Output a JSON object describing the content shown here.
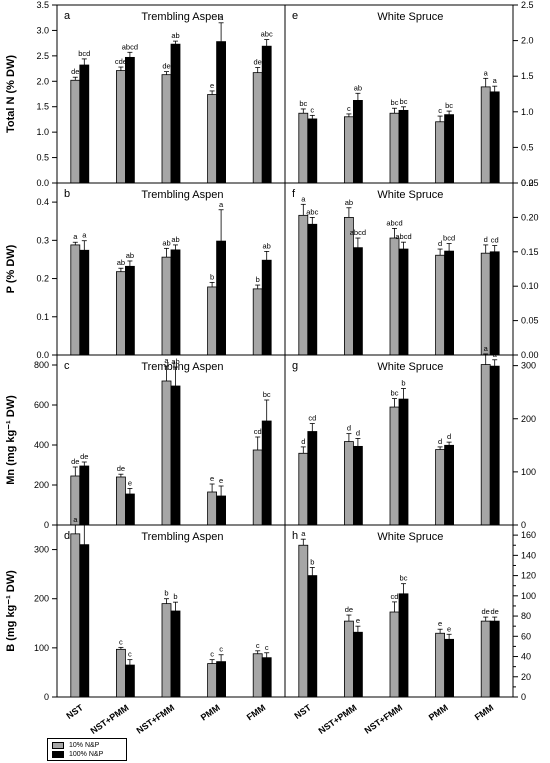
{
  "chart_data": [
    {
      "type": "bar",
      "panel": "a",
      "title": "Trembling Aspen",
      "ylabel": "Total N (% DW)",
      "ylim": [
        0,
        3.5
      ],
      "yticks": [
        0,
        0.5,
        1.0,
        1.5,
        2.0,
        2.5,
        3.0,
        3.5
      ],
      "tick_side": "left",
      "categories": [
        "NST",
        "NST+PMM",
        "NST+FMM",
        "PMM",
        "FMM"
      ],
      "series": [
        {
          "name": "10% N&P",
          "values": [
            2.02,
            2.21,
            2.13,
            1.74,
            2.17
          ],
          "errors": [
            0.06,
            0.07,
            0.06,
            0.07,
            0.1
          ],
          "labels": [
            "de",
            "cde",
            "de",
            "e",
            "de"
          ]
        },
        {
          "name": "100% N&P",
          "values": [
            2.32,
            2.47,
            2.73,
            2.78,
            2.69
          ],
          "errors": [
            0.12,
            0.1,
            0.06,
            0.37,
            0.13
          ],
          "labels": [
            "bcd",
            "abcd",
            "ab",
            "a",
            "abc"
          ]
        }
      ]
    },
    {
      "type": "bar",
      "panel": "e",
      "title": "White Spruce",
      "ylabel": "",
      "ylim": [
        0,
        2.5
      ],
      "yticks": [
        0,
        0.5,
        1.0,
        1.5,
        2.0,
        2.5
      ],
      "tick_side": "right",
      "categories": [
        "NST",
        "NST+PMM",
        "NST+FMM",
        "PMM",
        "FMM"
      ],
      "series": [
        {
          "name": "10% N&P",
          "values": [
            0.98,
            0.93,
            0.98,
            0.86,
            1.35
          ],
          "errors": [
            0.06,
            0.04,
            0.07,
            0.08,
            0.12
          ],
          "labels": [
            "bc",
            "c",
            "bc",
            "c",
            "a"
          ]
        },
        {
          "name": "100% N&P",
          "values": [
            0.9,
            1.16,
            1.02,
            0.96,
            1.28
          ],
          "errors": [
            0.05,
            0.1,
            0.05,
            0.05,
            0.08
          ],
          "labels": [
            "c",
            "ab",
            "bc",
            "bc",
            "a"
          ]
        }
      ]
    },
    {
      "type": "bar",
      "panel": "b",
      "title": "Trembling Aspen",
      "ylabel": "P (% DW)",
      "ylim": [
        0,
        0.45
      ],
      "yticks": [
        0.0,
        0.1,
        0.2,
        0.3,
        0.4
      ],
      "tick_side": "left",
      "categories": [
        "NST",
        "NST+PMM",
        "NST+FMM",
        "PMM",
        "FMM"
      ],
      "series": [
        {
          "name": "10% N&P",
          "values": [
            0.288,
            0.218,
            0.256,
            0.178,
            0.173
          ],
          "errors": [
            0.007,
            0.009,
            0.023,
            0.012,
            0.01
          ],
          "labels": [
            "a",
            "ab",
            "ab",
            "b",
            "b"
          ]
        },
        {
          "name": "100% N&P",
          "values": [
            0.274,
            0.232,
            0.275,
            0.298,
            0.248
          ],
          "errors": [
            0.025,
            0.014,
            0.013,
            0.082,
            0.023
          ],
          "labels": [
            "a",
            "ab",
            "ab",
            "a",
            "ab"
          ]
        }
      ]
    },
    {
      "type": "bar",
      "panel": "f",
      "title": "White Spruce",
      "ylabel": "",
      "ylim": [
        0,
        0.25
      ],
      "yticks": [
        0.0,
        0.05,
        0.1,
        0.15,
        0.2,
        0.25
      ],
      "tick_side": "right",
      "categories": [
        "NST",
        "NST+PMM",
        "NST+FMM",
        "PMM",
        "FMM"
      ],
      "series": [
        {
          "name": "10% N&P",
          "values": [
            0.203,
            0.2,
            0.17,
            0.145,
            0.148
          ],
          "errors": [
            0.016,
            0.014,
            0.014,
            0.009,
            0.012
          ],
          "labels": [
            "a",
            "ab",
            "abcd",
            "d",
            "d"
          ]
        },
        {
          "name": "100% N&P",
          "values": [
            0.19,
            0.156,
            0.154,
            0.151,
            0.15
          ],
          "errors": [
            0.01,
            0.014,
            0.01,
            0.011,
            0.009
          ],
          "labels": [
            "abc",
            "abcd",
            "abcd",
            "bcd",
            "cd"
          ]
        }
      ]
    },
    {
      "type": "bar",
      "panel": "c",
      "title": "Trembling Aspen",
      "ylabel": "Mn (mg kg⁻¹ DW)",
      "ylim": [
        0,
        850
      ],
      "yticks": [
        0,
        200,
        400,
        600,
        800
      ],
      "tick_side": "left",
      "categories": [
        "NST",
        "NST+PMM",
        "NST+FMM",
        "PMM",
        "FMM"
      ],
      "series": [
        {
          "name": "10% N&P",
          "values": [
            245,
            240,
            720,
            165,
            375
          ],
          "errors": [
            45,
            14,
            75,
            40,
            65
          ],
          "labels": [
            "de",
            "de",
            "a",
            "e",
            "cd"
          ]
        },
        {
          "name": "100% N&P",
          "values": [
            295,
            155,
            695,
            145,
            520
          ],
          "errors": [
            20,
            28,
            95,
            50,
            105
          ],
          "labels": [
            "de",
            "e",
            "ab",
            "e",
            "bc"
          ]
        }
      ]
    },
    {
      "type": "bar",
      "panel": "g",
      "title": "White Spruce",
      "ylabel": "",
      "ylim": [
        0,
        320
      ],
      "yticks": [
        0,
        100,
        200,
        300
      ],
      "tick_side": "right",
      "categories": [
        "NST",
        "NST+PMM",
        "NST+FMM",
        "PMM",
        "FMM"
      ],
      "series": [
        {
          "name": "10% N&P",
          "values": [
            135,
            157,
            222,
            142,
            302
          ],
          "errors": [
            12,
            15,
            16,
            5,
            20
          ],
          "labels": [
            "d",
            "d",
            "bc",
            "d",
            "a"
          ]
        },
        {
          "name": "100% N&P",
          "values": [
            176,
            148,
            237,
            150,
            299
          ],
          "errors": [
            15,
            15,
            20,
            6,
            12
          ],
          "labels": [
            "cd",
            "d",
            "b",
            "d",
            "a"
          ]
        }
      ]
    },
    {
      "type": "bar",
      "panel": "d",
      "title": "Trembling Aspen",
      "ylabel": "B (mg kg⁻¹ DW)",
      "ylim": [
        0,
        350
      ],
      "yticks": [
        0,
        100,
        200,
        300
      ],
      "tick_side": "left",
      "categories": [
        "NST",
        "NST+PMM",
        "NST+FMM",
        "PMM",
        "FMM"
      ],
      "series": [
        {
          "name": "10% N&P",
          "values": [
            332,
            97,
            190,
            68,
            88
          ],
          "errors": [
            18,
            4,
            10,
            8,
            6
          ],
          "labels": [
            "a",
            "c",
            "b",
            "c",
            "c"
          ]
        },
        {
          "name": "100% N&P",
          "values": [
            310,
            65,
            175,
            72,
            80
          ],
          "errors": [
            50,
            11,
            18,
            14,
            10
          ],
          "labels": [
            "a",
            "c",
            "b",
            "c",
            "c"
          ]
        }
      ]
    },
    {
      "type": "bar",
      "panel": "h",
      "title": "White Spruce",
      "ylabel": "",
      "ylim": [
        0,
        170
      ],
      "yticks": [
        0,
        10,
        20,
        30,
        40,
        50,
        60,
        70,
        80,
        90,
        100,
        110,
        120,
        130,
        140,
        150,
        160
      ],
      "tick_labels": [
        0,
        20,
        40,
        60,
        80,
        100,
        120,
        140,
        160
      ],
      "tick_side": "right",
      "categories": [
        "NST",
        "NST+PMM",
        "NST+FMM",
        "PMM",
        "FMM"
      ],
      "series": [
        {
          "name": "10% N&P",
          "values": [
            150,
            75,
            84,
            63,
            75
          ],
          "errors": [
            6,
            6,
            10,
            4,
            4
          ],
          "labels": [
            "a",
            "de",
            "cd",
            "e",
            "de"
          ]
        },
        {
          "name": "100% N&P",
          "values": [
            120,
            64,
            102,
            57,
            75
          ],
          "errors": [
            8,
            6,
            10,
            5,
            4
          ],
          "labels": [
            "b",
            "e",
            "bc",
            "e",
            "de"
          ]
        }
      ]
    }
  ],
  "legend": {
    "items": [
      {
        "label": "10% N&P",
        "color": "#a6a6a6"
      },
      {
        "label": "100% N&P",
        "color": "#000000"
      }
    ],
    "position": "bottom-left"
  },
  "x_categories": [
    "NST",
    "NST+PMM",
    "NST+FMM",
    "PMM",
    "FMM"
  ],
  "colors": {
    "bar10": "#a6a6a6",
    "bar100": "#000000",
    "axis": "#000000"
  }
}
